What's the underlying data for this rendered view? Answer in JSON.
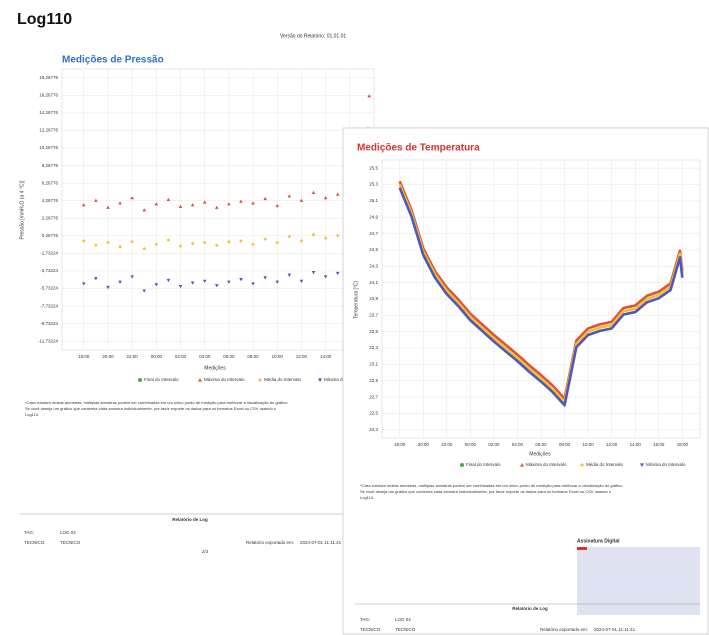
{
  "header": {
    "title": "Log110",
    "report_version": "Versão do Relatório: 01.01.01"
  },
  "chart_data": [
    {
      "type": "scatter",
      "title": "Medições de Pressão",
      "x_label": "Medições",
      "y_label": "Pressão [mmH₂O (a 4 °C)]",
      "x": [
        18,
        19,
        20,
        21,
        22,
        23,
        24,
        25,
        26,
        27,
        28,
        29,
        30,
        31,
        32,
        33,
        34,
        35,
        36,
        37,
        38,
        39,
        40,
        41,
        41.5,
        41.6
      ],
      "xlim": [
        16.2,
        42
      ],
      "xticks": [
        {
          "value": 18,
          "label": "18:00"
        },
        {
          "value": 20,
          "label": "20:00"
        },
        {
          "value": 22,
          "label": "22:00"
        },
        {
          "value": 24,
          "label": "00:00"
        },
        {
          "value": 26,
          "label": "02:00"
        },
        {
          "value": 28,
          "label": "04:00"
        },
        {
          "value": 30,
          "label": "06:00"
        },
        {
          "value": 32,
          "label": "08:00"
        },
        {
          "value": 34,
          "label": "10:00"
        },
        {
          "value": 36,
          "label": "12:00"
        },
        {
          "value": 38,
          "label": "14:00"
        },
        {
          "value": 40,
          "label": "16:00"
        }
      ],
      "ylim": [
        -12.73224,
        19.26776
      ],
      "yticks": [
        {
          "value": 18.26776,
          "label": "18,26776"
        },
        {
          "value": 16.26776,
          "label": "16,26776"
        },
        {
          "value": 14.26776,
          "label": "14,26776"
        },
        {
          "value": 12.26776,
          "label": "12,26776"
        },
        {
          "value": 10.26776,
          "label": "10,26776"
        },
        {
          "value": 8.26776,
          "label": "8,26776"
        },
        {
          "value": 6.26776,
          "label": "6,26776"
        },
        {
          "value": 4.26776,
          "label": "4,26776"
        },
        {
          "value": 2.26776,
          "label": "2,26776"
        },
        {
          "value": 0.26776,
          "label": "0,26776"
        },
        {
          "value": -1.73224,
          "label": "-1,73224"
        },
        {
          "value": -3.73224,
          "label": "-3,73224"
        },
        {
          "value": -5.73224,
          "label": "-5,73224"
        },
        {
          "value": -7.73224,
          "label": "-7,73224"
        },
        {
          "value": -9.73224,
          "label": "-9,73224"
        },
        {
          "value": -11.73224,
          "label": "-11,73224"
        }
      ],
      "grid": true,
      "legend": "bottom",
      "series": [
        {
          "name": "Final do Intervalo",
          "color": "#3cb043",
          "marker": "circle",
          "values": [
            null,
            null,
            null,
            null,
            null,
            null,
            null,
            null,
            null,
            null,
            null,
            null,
            null,
            null,
            null,
            null,
            null,
            null,
            null,
            null,
            null,
            null,
            null,
            null,
            null,
            null
          ]
        },
        {
          "name": "Máxima do Intervalo",
          "color": "#e0503a",
          "marker": "triangle-up",
          "values": [
            3.8,
            4.3,
            3.5,
            4.0,
            4.6,
            3.2,
            3.9,
            4.4,
            3.6,
            3.8,
            4.1,
            3.5,
            3.9,
            4.2,
            4.0,
            4.5,
            3.7,
            4.8,
            4.3,
            5.2,
            4.6,
            5.0,
            4.4,
            4.9,
            12.5,
            16.2
          ]
        },
        {
          "name": "Média do Intervalo",
          "color": "#f2c12e",
          "marker": "diamond",
          "values": [
            -0.3,
            -0.8,
            -0.5,
            -1.0,
            -0.4,
            -1.2,
            -0.7,
            -0.2,
            -0.9,
            -0.6,
            -0.5,
            -0.8,
            -0.4,
            -0.3,
            -0.7,
            -0.1,
            -0.5,
            0.2,
            -0.3,
            0.4,
            0.0,
            0.3,
            -0.2,
            0.1,
            null,
            null
          ]
        },
        {
          "name": "Mínima do Intervalo",
          "color": "#4a58c0",
          "marker": "triangle-down",
          "values": [
            -5.2,
            -4.6,
            -5.6,
            -5.0,
            -4.4,
            -6.0,
            -5.3,
            -4.8,
            -5.5,
            -5.1,
            -4.9,
            -5.4,
            -5.0,
            -4.7,
            -5.2,
            -4.5,
            -5.0,
            -4.2,
            -4.9,
            -3.9,
            -4.4,
            -4.0,
            -4.6,
            -4.3,
            null,
            null
          ]
        }
      ]
    },
    {
      "type": "line",
      "title": "Medições de Temperatura",
      "x_label": "Medições",
      "y_label": "Temperatura [°C]",
      "x": [
        18,
        19,
        20,
        21,
        22,
        23,
        24,
        25,
        26,
        27,
        28,
        29,
        30,
        31,
        32,
        33,
        34,
        35,
        36,
        37,
        38,
        39,
        40,
        41,
        41.8,
        42
      ],
      "xlim": [
        16.5,
        43.5
      ],
      "xticks": [
        {
          "value": 18,
          "label": "18:00"
        },
        {
          "value": 20,
          "label": "20:00"
        },
        {
          "value": 22,
          "label": "22:00"
        },
        {
          "value": 24,
          "label": "00:00"
        },
        {
          "value": 26,
          "label": "02:00"
        },
        {
          "value": 28,
          "label": "04:00"
        },
        {
          "value": 30,
          "label": "06:00"
        },
        {
          "value": 32,
          "label": "08:00"
        },
        {
          "value": 34,
          "label": "10:00"
        },
        {
          "value": 36,
          "label": "12:00"
        },
        {
          "value": 38,
          "label": "14:00"
        },
        {
          "value": 40,
          "label": "16:00"
        },
        {
          "value": 42,
          "label": "18:00"
        }
      ],
      "ylim": [
        22.2,
        25.6
      ],
      "yticks": [
        {
          "value": 25.5,
          "label": "25,5"
        },
        {
          "value": 25.3,
          "label": "25,3"
        },
        {
          "value": 25.1,
          "label": "25,1"
        },
        {
          "value": 24.9,
          "label": "24,9"
        },
        {
          "value": 24.7,
          "label": "24,7"
        },
        {
          "value": 24.5,
          "label": "24,5"
        },
        {
          "value": 24.3,
          "label": "24,3"
        },
        {
          "value": 24.1,
          "label": "24,1"
        },
        {
          "value": 23.9,
          "label": "23,9"
        },
        {
          "value": 23.7,
          "label": "23,7"
        },
        {
          "value": 23.5,
          "label": "23,5"
        },
        {
          "value": 23.3,
          "label": "23,3"
        },
        {
          "value": 23.1,
          "label": "23,1"
        },
        {
          "value": 22.9,
          "label": "22,9"
        },
        {
          "value": 22.7,
          "label": "22,7"
        },
        {
          "value": 22.5,
          "label": "22,5"
        },
        {
          "value": 22.3,
          "label": "22,3"
        }
      ],
      "grid": true,
      "legend": "bottom",
      "series": [
        {
          "name": "Final do Intervalo",
          "color": "#3cb043",
          "marker": "circle",
          "values": [
            null,
            null,
            null,
            null,
            null,
            null,
            null,
            null,
            null,
            null,
            null,
            null,
            null,
            null,
            null,
            null,
            null,
            null,
            null,
            null,
            null,
            null,
            null,
            null,
            null,
            null
          ]
        },
        {
          "name": "Máxima do Intervalo",
          "color": "#e0503a",
          "marker": "triangle-up",
          "values": [
            25.34,
            24.99,
            24.52,
            24.24,
            24.04,
            23.89,
            23.72,
            23.59,
            23.46,
            23.34,
            23.22,
            23.09,
            22.97,
            22.84,
            22.68,
            23.39,
            23.54,
            23.59,
            23.62,
            23.79,
            23.82,
            23.94,
            23.99,
            24.09,
            24.49,
            24.24
          ]
        },
        {
          "name": "Média do Intervalo",
          "color": "#f2c12e",
          "marker": "diamond",
          "values": [
            25.3,
            24.95,
            24.48,
            24.2,
            24.0,
            23.85,
            23.68,
            23.55,
            23.42,
            23.3,
            23.18,
            23.05,
            22.93,
            22.8,
            22.64,
            23.35,
            23.5,
            23.55,
            23.58,
            23.75,
            23.78,
            23.9,
            23.95,
            24.05,
            24.45,
            24.2
          ]
        },
        {
          "name": "Mínima do Intervalo",
          "color": "#4a58c0",
          "marker": "triangle-down",
          "values": [
            25.26,
            24.91,
            24.44,
            24.16,
            23.96,
            23.81,
            23.64,
            23.51,
            23.38,
            23.26,
            23.14,
            23.01,
            22.89,
            22.76,
            22.6,
            23.31,
            23.46,
            23.51,
            23.54,
            23.71,
            23.74,
            23.86,
            23.91,
            24.01,
            24.41,
            24.16
          ]
        }
      ]
    }
  ],
  "footnote": [
    "*Caso existam muitas amostras, múltiplas amostras podem ser combinadas em um único ponto de medição para melhorar a visualização do gráfico.",
    "Se você deseja um gráfico que contenha cada amostra individualmente, por favor exporte os dados para os formatos Excel ou CSV usando o",
    "Log110."
  ],
  "footer": {
    "title": "Relatório de Log",
    "tag_label": "TAG:",
    "tag": "LOG 04",
    "tech_label": "TECNICO:",
    "tech": "TECNICO",
    "exported_label": "Relatório exportado em:",
    "exported_at": "2024-07-01 11:11:41",
    "page": "2/3"
  },
  "signature": {
    "title": "Assinatura Digital"
  }
}
